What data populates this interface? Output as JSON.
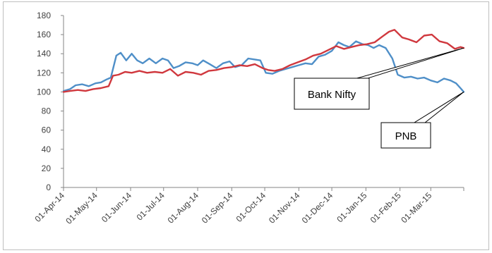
{
  "chart_data": {
    "type": "line",
    "title": "",
    "xlabel": "",
    "ylabel": "",
    "ylim": [
      0,
      180
    ],
    "y_ticks": [
      0,
      20,
      40,
      60,
      80,
      100,
      120,
      140,
      160,
      180
    ],
    "x_tick_labels": [
      "01-Apr-14",
      "01-May-14",
      "01-Jun-14",
      "01-Jul-14",
      "01-Aug-14",
      "01-Sep-14",
      "01-Oct-14",
      "01-Nov-14",
      "01-Dec-14",
      "01-Jan-15",
      "01-Feb-15",
      "01-Mar-15"
    ],
    "x_range": [
      "01-Apr-14",
      "31-Mar-15"
    ],
    "grid": false,
    "legend": "none",
    "series": [
      {
        "name": "PNB",
        "color": "#4f8fc8",
        "points": [
          [
            "01-Apr-14",
            101
          ],
          [
            "07-Apr-14",
            103
          ],
          [
            "12-Apr-14",
            107
          ],
          [
            "18-Apr-14",
            108
          ],
          [
            "24-Apr-14",
            106
          ],
          [
            "30-Apr-14",
            109
          ],
          [
            "05-May-14",
            110
          ],
          [
            "10-May-14",
            113
          ],
          [
            "14-May-14",
            115
          ],
          [
            "19-May-14",
            138
          ],
          [
            "23-May-14",
            141
          ],
          [
            "28-May-14",
            133
          ],
          [
            "02-Jun-14",
            140
          ],
          [
            "07-Jun-14",
            133
          ],
          [
            "12-Jun-14",
            130
          ],
          [
            "18-Jun-14",
            135
          ],
          [
            "24-Jun-14",
            130
          ],
          [
            "30-Jun-14",
            135
          ],
          [
            "05-Jul-14",
            133
          ],
          [
            "10-Jul-14",
            125
          ],
          [
            "15-Jul-14",
            127
          ],
          [
            "21-Jul-14",
            131
          ],
          [
            "27-Jul-14",
            130
          ],
          [
            "01-Aug-14",
            128
          ],
          [
            "06-Aug-14",
            133
          ],
          [
            "12-Aug-14",
            129
          ],
          [
            "18-Aug-14",
            125
          ],
          [
            "24-Aug-14",
            130
          ],
          [
            "30-Aug-14",
            132
          ],
          [
            "04-Sep-14",
            126
          ],
          [
            "10-Sep-14",
            128
          ],
          [
            "16-Sep-14",
            135
          ],
          [
            "22-Sep-14",
            134
          ],
          [
            "27-Sep-14",
            133
          ],
          [
            "02-Oct-14",
            120
          ],
          [
            "08-Oct-14",
            119
          ],
          [
            "14-Oct-14",
            122
          ],
          [
            "20-Oct-14",
            124
          ],
          [
            "26-Oct-14",
            126
          ],
          [
            "01-Nov-14",
            128
          ],
          [
            "07-Nov-14",
            130
          ],
          [
            "13-Nov-14",
            129
          ],
          [
            "19-Nov-14",
            137
          ],
          [
            "25-Nov-14",
            139
          ],
          [
            "01-Dec-14",
            143
          ],
          [
            "07-Dec-14",
            152
          ],
          [
            "12-Dec-14",
            149
          ],
          [
            "17-Dec-14",
            147
          ],
          [
            "23-Dec-14",
            153
          ],
          [
            "29-Dec-14",
            150
          ],
          [
            "03-Jan-15",
            149
          ],
          [
            "08-Jan-15",
            146
          ],
          [
            "13-Jan-15",
            149
          ],
          [
            "19-Jan-15",
            146
          ],
          [
            "25-Jan-15",
            135
          ],
          [
            "30-Jan-15",
            118
          ],
          [
            "05-Feb-15",
            115
          ],
          [
            "11-Feb-15",
            116
          ],
          [
            "17-Feb-15",
            114
          ],
          [
            "23-Feb-15",
            115
          ],
          [
            "01-Mar-15",
            112
          ],
          [
            "07-Mar-15",
            110
          ],
          [
            "13-Mar-15",
            114
          ],
          [
            "19-Mar-15",
            112
          ],
          [
            "24-Mar-15",
            109
          ],
          [
            "28-Mar-15",
            104
          ],
          [
            "31-Mar-15",
            100
          ]
        ]
      },
      {
        "name": "Bank Nifty",
        "color": "#d0383e",
        "points": [
          [
            "01-Apr-14",
            100
          ],
          [
            "07-Apr-14",
            101
          ],
          [
            "14-Apr-14",
            102
          ],
          [
            "21-Apr-14",
            101
          ],
          [
            "28-Apr-14",
            103
          ],
          [
            "05-May-14",
            104
          ],
          [
            "12-May-14",
            106
          ],
          [
            "16-May-14",
            117
          ],
          [
            "21-May-14",
            118
          ],
          [
            "27-May-14",
            121
          ],
          [
            "02-Jun-14",
            120
          ],
          [
            "09-Jun-14",
            122
          ],
          [
            "16-Jun-14",
            120
          ],
          [
            "23-Jun-14",
            121
          ],
          [
            "30-Jun-14",
            120
          ],
          [
            "07-Jul-14",
            124
          ],
          [
            "14-Jul-14",
            117
          ],
          [
            "21-Jul-14",
            121
          ],
          [
            "28-Jul-14",
            120
          ],
          [
            "04-Aug-14",
            118
          ],
          [
            "11-Aug-14",
            122
          ],
          [
            "18-Aug-14",
            123
          ],
          [
            "25-Aug-14",
            125
          ],
          [
            "01-Sep-14",
            126
          ],
          [
            "08-Sep-14",
            128
          ],
          [
            "15-Sep-14",
            127
          ],
          [
            "22-Sep-14",
            129
          ],
          [
            "29-Sep-14",
            125
          ],
          [
            "04-Oct-14",
            123
          ],
          [
            "10-Oct-14",
            122
          ],
          [
            "17-Oct-14",
            124
          ],
          [
            "24-Oct-14",
            128
          ],
          [
            "31-Oct-14",
            131
          ],
          [
            "07-Nov-14",
            134
          ],
          [
            "14-Nov-14",
            138
          ],
          [
            "21-Nov-14",
            140
          ],
          [
            "28-Nov-14",
            144
          ],
          [
            "05-Dec-14",
            148
          ],
          [
            "12-Dec-14",
            145
          ],
          [
            "19-Dec-14",
            147
          ],
          [
            "26-Dec-14",
            149
          ],
          [
            "02-Jan-15",
            150
          ],
          [
            "09-Jan-15",
            152
          ],
          [
            "16-Jan-15",
            158
          ],
          [
            "22-Jan-15",
            163
          ],
          [
            "27-Jan-15",
            165
          ],
          [
            "03-Feb-15",
            157
          ],
          [
            "09-Feb-15",
            155
          ],
          [
            "16-Feb-15",
            152
          ],
          [
            "23-Feb-15",
            159
          ],
          [
            "02-Mar-15",
            160
          ],
          [
            "09-Mar-15",
            153
          ],
          [
            "16-Mar-15",
            151
          ],
          [
            "23-Mar-15",
            145
          ],
          [
            "28-Mar-15",
            147
          ],
          [
            "31-Mar-15",
            146
          ]
        ]
      }
    ],
    "annotations": [
      {
        "text": "Bank Nifty",
        "series": "Bank Nifty"
      },
      {
        "text": "PNB",
        "series": "PNB"
      }
    ]
  }
}
